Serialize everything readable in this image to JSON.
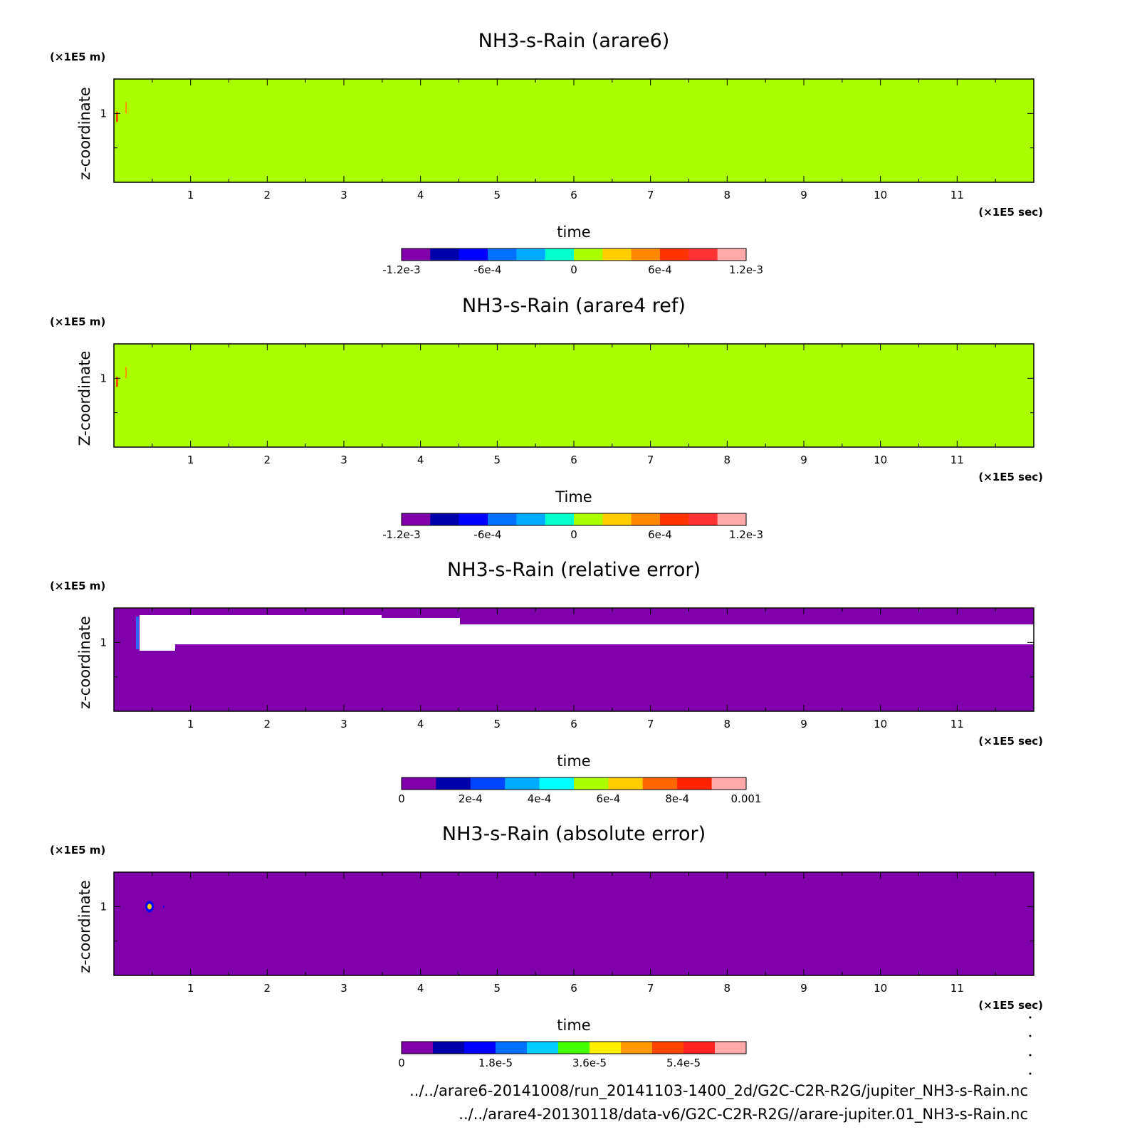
{
  "panels": [
    {
      "title": "NH3-s-Rain (arare6)",
      "y_unit": "(×1E5 m)",
      "x_unit": "(×1E5 sec)",
      "ylabel": "z-coordinate",
      "xlabel": "time",
      "fill": "#aaff00",
      "x_ticks": [
        "1",
        "2",
        "3",
        "4",
        "5",
        "6",
        "7",
        "8",
        "9",
        "10",
        "11"
      ],
      "y_ticks": [
        "1"
      ],
      "colorbar": {
        "colors": [
          "#7f00aa",
          "#0000aa",
          "#0000ff",
          "#0070ff",
          "#00aaff",
          "#00ffcc",
          "#aaff00",
          "#ffcc00",
          "#ff8800",
          "#ff3300",
          "#ff3333",
          "#ffaaaa"
        ],
        "labels": [
          "-1.2e-3",
          "-6e-4",
          "0",
          "6e-4",
          "1.2e-3"
        ]
      }
    },
    {
      "title": "NH3-s-Rain (arare4 ref)",
      "y_unit": "(×1E5 m)",
      "x_unit": "(×1E5 sec)",
      "ylabel": "Z-coordinate",
      "xlabel": "Time",
      "fill": "#aaff00",
      "x_ticks": [
        "1",
        "2",
        "3",
        "4",
        "5",
        "6",
        "7",
        "8",
        "9",
        "10",
        "11"
      ],
      "y_ticks": [
        "1"
      ],
      "colorbar": {
        "colors": [
          "#7f00aa",
          "#0000aa",
          "#0000ff",
          "#0070ff",
          "#00aaff",
          "#00ffcc",
          "#aaff00",
          "#ffcc00",
          "#ff8800",
          "#ff3300",
          "#ff3333",
          "#ffaaaa"
        ],
        "labels": [
          "-1.2e-3",
          "-6e-4",
          "0",
          "6e-4",
          "1.2e-3"
        ]
      }
    },
    {
      "title": "NH3-s-Rain (relative error)",
      "y_unit": "(×1E5 m)",
      "x_unit": "(×1E5 sec)",
      "ylabel": "z-coordinate",
      "xlabel": "time",
      "fill": "#7f00aa",
      "x_ticks": [
        "1",
        "2",
        "3",
        "4",
        "5",
        "6",
        "7",
        "8",
        "9",
        "10",
        "11"
      ],
      "y_ticks": [
        "1"
      ],
      "colorbar": {
        "colors": [
          "#7f00aa",
          "#0000aa",
          "#0044ff",
          "#00aaff",
          "#00ffff",
          "#aaff00",
          "#ffcc00",
          "#ff6600",
          "#ff2200",
          "#ffaaaa"
        ],
        "labels": [
          "0",
          "2e-4",
          "4e-4",
          "6e-4",
          "8e-4",
          "0.001"
        ]
      }
    },
    {
      "title": "NH3-s-Rain (absolute error)",
      "y_unit": "(×1E5 m)",
      "x_unit": "(×1E5 sec)",
      "ylabel": "z-coordinate",
      "xlabel": "time",
      "fill": "#7f00aa",
      "x_ticks": [
        "1",
        "2",
        "3",
        "4",
        "5",
        "6",
        "7",
        "8",
        "9",
        "10",
        "11"
      ],
      "y_ticks": [
        "1"
      ],
      "colorbar": {
        "colors": [
          "#7f00aa",
          "#0000aa",
          "#0000ff",
          "#0070ff",
          "#00ccff",
          "#44ff00",
          "#ffee00",
          "#ff9900",
          "#ff4400",
          "#ff2222",
          "#ffaaaa"
        ],
        "labels": [
          "0",
          "1.8e-5",
          "3.6e-5",
          "5.4e-5"
        ]
      }
    }
  ],
  "footer": {
    "line1": "../../arare6-20141008/run_20141103-1400_2d/G2C-C2R-R2G/jupiter_NH3-s-Rain.nc",
    "line2": "../../arare4-20130118/data-v6/G2C-C2R-R2G//arare-jupiter.01_NH3-s-Rain.nc"
  },
  "chart_data": [
    {
      "type": "heatmap",
      "title": "NH3-s-Rain (arare6)",
      "xlabel": "time",
      "x_unit": "×1E5 sec",
      "ylabel": "z-coordinate",
      "y_unit": "×1E5 m",
      "xlim": [
        0,
        12
      ],
      "x_ticks": [
        1,
        2,
        3,
        4,
        5,
        6,
        7,
        8,
        9,
        10,
        11
      ],
      "y_ticks": [
        1
      ],
      "field": "uniform ~0 (green) with small positive streaks near x≈0.05–0.15, z≈1",
      "colorbar_range": [
        -0.0012,
        0.0012
      ]
    },
    {
      "type": "heatmap",
      "title": "NH3-s-Rain (arare4 ref)",
      "xlabel": "Time",
      "x_unit": "×1E5 sec",
      "ylabel": "Z-coordinate",
      "y_unit": "×1E5 m",
      "xlim": [
        0,
        12
      ],
      "x_ticks": [
        1,
        2,
        3,
        4,
        5,
        6,
        7,
        8,
        9,
        10,
        11
      ],
      "y_ticks": [
        1
      ],
      "field": "uniform ~0 (green) with small positive streaks near x≈0.05–0.15, z≈1",
      "colorbar_range": [
        -0.0012,
        0.0012
      ]
    },
    {
      "type": "heatmap",
      "title": "NH3-s-Rain (relative error)",
      "xlabel": "time",
      "x_unit": "×1E5 sec",
      "ylabel": "z-coordinate",
      "y_unit": "×1E5 m",
      "xlim": [
        0,
        12
      ],
      "x_ticks": [
        1,
        2,
        3,
        4,
        5,
        6,
        7,
        8,
        9,
        10,
        11
      ],
      "y_ticks": [
        1
      ],
      "field": "0 (purple) everywhere except an undefined (white) band for z≈1.0–1.3 from x≈0.3 to end",
      "colorbar_range": [
        0,
        0.001
      ]
    },
    {
      "type": "heatmap",
      "title": "NH3-s-Rain (absolute error)",
      "xlabel": "time",
      "x_unit": "×1E5 sec",
      "ylabel": "z-coordinate",
      "y_unit": "×1E5 m",
      "xlim": [
        0,
        12
      ],
      "x_ticks": [
        1,
        2,
        3,
        4,
        5,
        6,
        7,
        8,
        9,
        10,
        11
      ],
      "y_ticks": [
        1
      ],
      "field": "0 (purple) everywhere except a small spot near x≈0.45, z≈1",
      "colorbar_range": [
        0,
        6.6e-05
      ]
    }
  ]
}
